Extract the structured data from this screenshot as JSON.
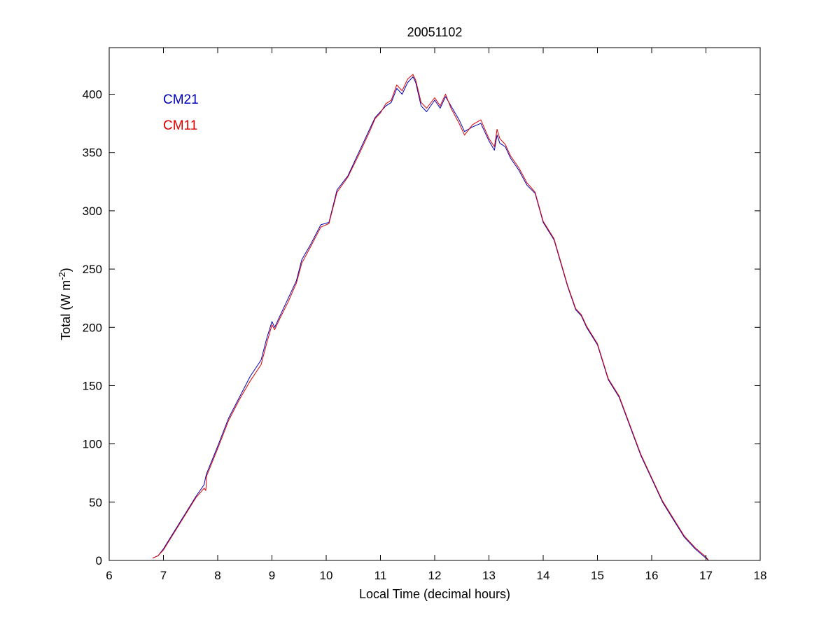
{
  "chart_data": {
    "type": "line",
    "title": "20051102",
    "xlabel": "Local Time (decimal hours)",
    "ylabel_main": "Total (W m",
    "ylabel_sup": "-2",
    "ylabel_close": ")",
    "xlim": [
      6,
      18
    ],
    "ylim": [
      0,
      440
    ],
    "xticks": [
      6,
      7,
      8,
      9,
      10,
      11,
      12,
      13,
      14,
      15,
      16,
      17,
      18
    ],
    "yticks": [
      0,
      50,
      100,
      150,
      200,
      250,
      300,
      350,
      400
    ],
    "grid": false,
    "legend": {
      "placement": "top-left",
      "entries": [
        {
          "name": "CM21",
          "color": "#0000bb"
        },
        {
          "name": "CM11",
          "color": "#dd0000"
        }
      ]
    },
    "series": [
      {
        "name": "CM21",
        "color": "#0000bb",
        "x": [
          6.8,
          6.9,
          7.0,
          7.2,
          7.4,
          7.6,
          7.75,
          7.78,
          7.8,
          8.0,
          8.2,
          8.4,
          8.6,
          8.8,
          8.9,
          9.0,
          9.05,
          9.15,
          9.3,
          9.45,
          9.55,
          9.7,
          9.9,
          10.05,
          10.2,
          10.4,
          10.6,
          10.8,
          10.9,
          11.0,
          11.1,
          11.2,
          11.3,
          11.4,
          11.5,
          11.6,
          11.65,
          11.75,
          11.85,
          12.0,
          12.1,
          12.2,
          12.3,
          12.45,
          12.55,
          12.7,
          12.85,
          13.0,
          13.1,
          13.15,
          13.2,
          13.3,
          13.4,
          13.55,
          13.7,
          13.85,
          14.0,
          14.2,
          14.45,
          14.6,
          14.7,
          14.8,
          15.0,
          15.2,
          15.4,
          15.6,
          15.8,
          16.0,
          16.2,
          16.4,
          16.6,
          16.8,
          17.0,
          17.05
        ],
        "y": [
          2,
          4,
          10,
          25,
          40,
          55,
          65,
          72,
          75,
          98,
          122,
          140,
          158,
          172,
          190,
          205,
          200,
          210,
          225,
          240,
          258,
          270,
          288,
          290,
          318,
          330,
          350,
          370,
          380,
          385,
          390,
          393,
          405,
          400,
          410,
          415,
          410,
          390,
          385,
          395,
          388,
          398,
          390,
          378,
          368,
          372,
          375,
          360,
          352,
          365,
          358,
          355,
          345,
          335,
          322,
          315,
          290,
          275,
          235,
          215,
          210,
          200,
          185,
          155,
          140,
          115,
          90,
          70,
          50,
          35,
          20,
          10,
          2,
          0
        ]
      },
      {
        "name": "CM11",
        "color": "#dd0000",
        "x": [
          6.8,
          6.9,
          7.0,
          7.2,
          7.4,
          7.6,
          7.75,
          7.78,
          7.8,
          8.0,
          8.2,
          8.4,
          8.6,
          8.8,
          8.9,
          9.0,
          9.05,
          9.15,
          9.3,
          9.45,
          9.55,
          9.7,
          9.9,
          10.05,
          10.2,
          10.4,
          10.6,
          10.8,
          10.9,
          11.0,
          11.1,
          11.2,
          11.3,
          11.4,
          11.5,
          11.6,
          11.65,
          11.75,
          11.85,
          12.0,
          12.1,
          12.2,
          12.3,
          12.45,
          12.55,
          12.7,
          12.85,
          13.0,
          13.1,
          13.15,
          13.2,
          13.3,
          13.4,
          13.55,
          13.7,
          13.85,
          14.0,
          14.2,
          14.45,
          14.6,
          14.7,
          14.8,
          15.0,
          15.2,
          15.4,
          15.6,
          15.8,
          16.0,
          16.2,
          16.4,
          16.6,
          16.8,
          17.0,
          17.05
        ],
        "y": [
          2,
          4,
          9,
          24,
          39,
          54,
          62,
          60,
          73,
          96,
          120,
          138,
          154,
          168,
          186,
          202,
          198,
          208,
          222,
          238,
          255,
          268,
          286,
          289,
          316,
          329,
          348,
          368,
          379,
          384,
          392,
          395,
          408,
          403,
          413,
          417,
          412,
          393,
          388,
          397,
          390,
          400,
          388,
          375,
          365,
          374,
          378,
          362,
          355,
          370,
          362,
          357,
          347,
          337,
          324,
          316,
          291,
          276,
          236,
          216,
          211,
          201,
          186,
          156,
          141,
          116,
          91,
          71,
          51,
          36,
          21,
          11,
          3,
          0
        ]
      }
    ]
  }
}
